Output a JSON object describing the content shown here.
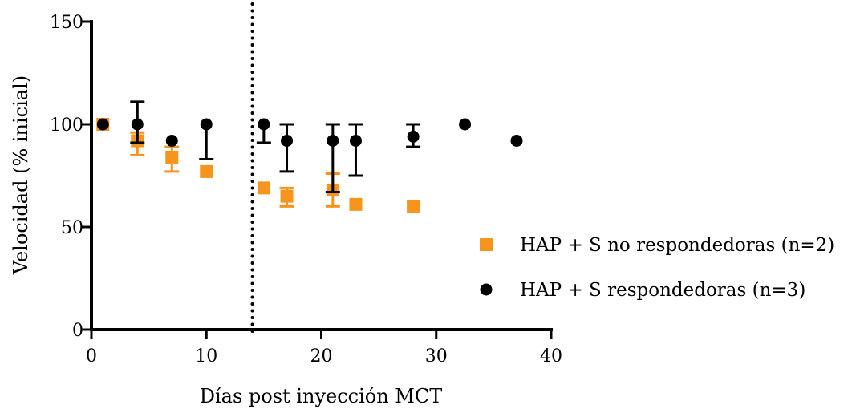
{
  "chart_data": {
    "type": "scatter",
    "title": "",
    "xlabel": "Días post inyección MCT",
    "ylabel": "Velocidad (% inicial)",
    "xlim": [
      0,
      40
    ],
    "ylim": [
      0,
      150
    ],
    "x_ticks": [
      0,
      10,
      20,
      30,
      40
    ],
    "y_ticks": [
      0,
      50,
      100,
      150
    ],
    "grid": false,
    "legend_position": "right",
    "vertical_reference_line": {
      "x": 14,
      "style": "dotted"
    },
    "series": [
      {
        "name": "HAP + S no respondedoras  (n=2)",
        "marker": "square",
        "color": "#f7941d",
        "points": [
          {
            "x": 1,
            "y": 100,
            "err_low": 0,
            "err_high": 0
          },
          {
            "x": 4,
            "y": 92,
            "err_low": 7,
            "err_high": 4
          },
          {
            "x": 7,
            "y": 84,
            "err_low": 7,
            "err_high": 5
          },
          {
            "x": 10,
            "y": 77,
            "err_low": 0,
            "err_high": 0
          },
          {
            "x": 15,
            "y": 69,
            "err_low": 0,
            "err_high": 0
          },
          {
            "x": 17,
            "y": 65,
            "err_low": 5,
            "err_high": 4
          },
          {
            "x": 21,
            "y": 68,
            "err_low": 8,
            "err_high": 8
          },
          {
            "x": 23,
            "y": 61,
            "err_low": 0,
            "err_high": 0
          },
          {
            "x": 28,
            "y": 60,
            "err_low": 0,
            "err_high": 0
          }
        ]
      },
      {
        "name": "HAP + S respondedoras  (n=3)",
        "marker": "circle",
        "color": "#000000",
        "points": [
          {
            "x": 1,
            "y": 100,
            "err_low": 0,
            "err_high": 0
          },
          {
            "x": 4,
            "y": 100,
            "err_low": 9,
            "err_high": 11
          },
          {
            "x": 7,
            "y": 92,
            "err_low": 0,
            "err_high": 0
          },
          {
            "x": 10,
            "y": 100,
            "err_low": 17,
            "err_high": 0
          },
          {
            "x": 15,
            "y": 100,
            "err_low": 9,
            "err_high": 0
          },
          {
            "x": 17,
            "y": 92,
            "err_low": 15,
            "err_high": 8
          },
          {
            "x": 21,
            "y": 92,
            "err_low": 25,
            "err_high": 8
          },
          {
            "x": 23,
            "y": 92,
            "err_low": 17,
            "err_high": 8
          },
          {
            "x": 28,
            "y": 94,
            "err_low": 5,
            "err_high": 6
          },
          {
            "x": 32.5,
            "y": 100,
            "err_low": 0,
            "err_high": 0
          },
          {
            "x": 37,
            "y": 92,
            "err_low": 0,
            "err_high": 0
          }
        ]
      }
    ]
  }
}
